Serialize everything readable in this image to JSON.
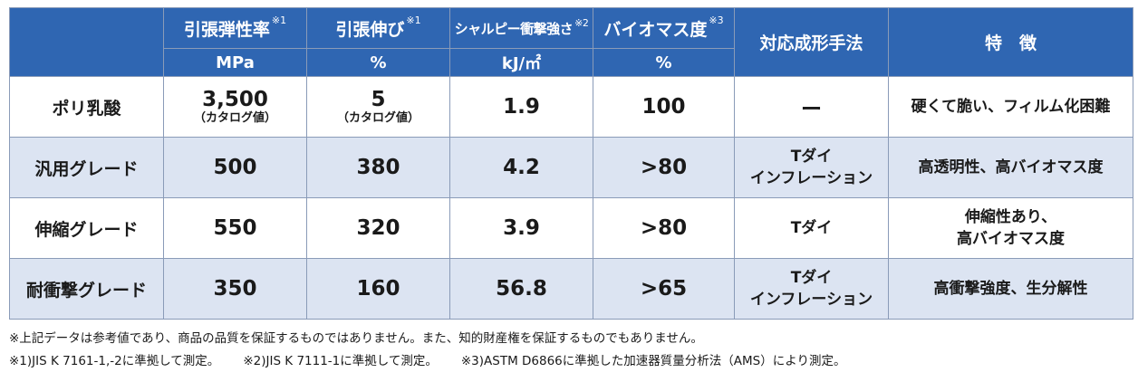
{
  "header": {
    "col_tensile_modulus": "引張弾性率",
    "col_tensile_modulus_note": "※1",
    "col_tensile_elongation": "引張伸び",
    "col_tensile_elongation_note": "※1",
    "col_charpy": "シャルピー衝撃強さ",
    "col_charpy_note": "※2",
    "col_biomass": "バイオマス度",
    "col_biomass_note": "※3",
    "col_method": "対応成形手法",
    "col_feature": "特　徴",
    "unit_modulus": "MPa",
    "unit_elongation": "%",
    "unit_charpy": "kJ/㎡",
    "unit_biomass": "%"
  },
  "rows": [
    {
      "name": "ポリ乳酸",
      "modulus": "3,500",
      "modulus_note": "（カタログ値）",
      "elongation": "5",
      "elongation_note": "（カタログ値）",
      "charpy": "1.9",
      "biomass": "100",
      "method_line1": "ー",
      "method_line2": "",
      "feature_line1": "硬くて脆い、フィルム化困難",
      "feature_line2": ""
    },
    {
      "name": "汎用グレード",
      "modulus": "500",
      "modulus_note": "",
      "elongation": "380",
      "elongation_note": "",
      "charpy": "4.2",
      "biomass": ">80",
      "method_line1": "Tダイ",
      "method_line2": "インフレーション",
      "feature_line1": "高透明性、高バイオマス度",
      "feature_line2": ""
    },
    {
      "name": "伸縮グレード",
      "modulus": "550",
      "modulus_note": "",
      "elongation": "320",
      "elongation_note": "",
      "charpy": "3.9",
      "biomass": ">80",
      "method_line1": "Tダイ",
      "method_line2": "",
      "feature_line1": "伸縮性あり、",
      "feature_line2": "高バイオマス度"
    },
    {
      "name": "耐衝撃グレード",
      "modulus": "350",
      "modulus_note": "",
      "elongation": "160",
      "elongation_note": "",
      "charpy": "56.8",
      "biomass": ">65",
      "method_line1": "Tダイ",
      "method_line2": "インフレーション",
      "feature_line1": "高衝撃強度、生分解性",
      "feature_line2": ""
    }
  ],
  "notes": {
    "disclaimer": "※上記データは参考値であり、商品の品質を保証するものではありません。また、知的財産権を保証するものでもありません。",
    "note1": "※1)JIS K 7161-1,-2に準拠して測定。",
    "note2": "※2)JIS K 7111-1に準拠して測定。",
    "note3": "※3)ASTM D6866に準拠した加速器質量分析法（AMS）により測定。"
  },
  "colors": {
    "header_bg": "#2f66b2",
    "row_alt_bg": "#dce4f2",
    "border": "#8a9bb8"
  }
}
